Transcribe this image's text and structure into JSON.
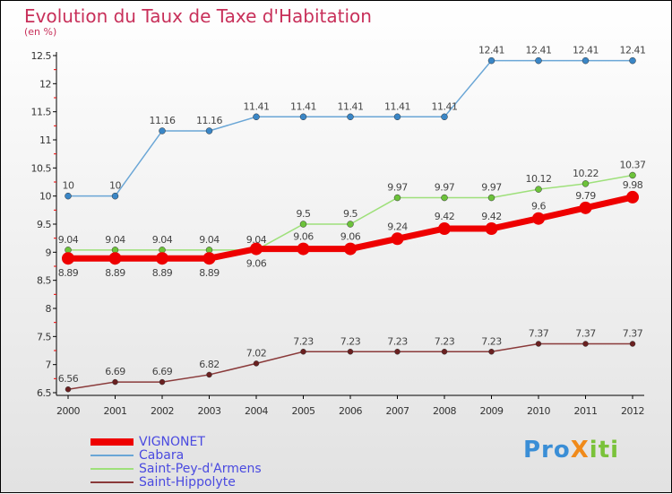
{
  "chart_data": {
    "type": "line",
    "title": "Evolution du Taux de Taxe d'Habitation",
    "subtitle": "(en %)",
    "x": [
      "2000",
      "2001",
      "2002",
      "2003",
      "2004",
      "2005",
      "2006",
      "2007",
      "2008",
      "2009",
      "2010",
      "2011",
      "2012"
    ],
    "yticks": [
      "6.5",
      "7",
      "7.5",
      "8",
      "8.5",
      "9",
      "9.5",
      "10",
      "10.5",
      "11",
      "11.5",
      "12",
      "12.5"
    ],
    "ylim": [
      6.5,
      12.5
    ],
    "series": [
      {
        "name": "Cabara",
        "color": "#6aa6d6",
        "dot": "#3a86c6",
        "width": 1.5,
        "r": 3.5,
        "values": [
          10,
          10,
          11.16,
          11.16,
          11.41,
          11.41,
          11.41,
          11.41,
          11.41,
          12.41,
          12.41,
          12.41,
          12.41
        ]
      },
      {
        "name": "Saint-Pey-d'Armens",
        "color": "#9ee07a",
        "dot": "#6cc23a",
        "width": 1.5,
        "r": 3.5,
        "values": [
          9.04,
          9.04,
          9.04,
          9.04,
          9.04,
          9.5,
          9.5,
          9.97,
          9.97,
          9.97,
          10.12,
          10.22,
          10.37
        ]
      },
      {
        "name": "Saint-Hippolyte",
        "color": "#8a3a3a",
        "dot": "#6a2020",
        "width": 1.5,
        "r": 3,
        "values": [
          6.56,
          6.69,
          6.69,
          6.82,
          7.02,
          7.23,
          7.23,
          7.23,
          7.23,
          7.23,
          7.37,
          7.37,
          7.37
        ]
      },
      {
        "name": "VIGNONET",
        "color": "#ee0000",
        "dot": "#ee0000",
        "width": 7,
        "r": 7,
        "values": [
          8.89,
          8.89,
          8.89,
          8.89,
          9.06,
          9.06,
          9.06,
          9.24,
          9.42,
          9.42,
          9.6,
          9.79,
          9.98
        ]
      }
    ],
    "legend": [
      "VIGNONET",
      "Cabara",
      "Saint-Pey-d'Armens",
      "Saint-Hippolyte"
    ],
    "legend_position": "bottom-left"
  },
  "logo": "ProXiti"
}
